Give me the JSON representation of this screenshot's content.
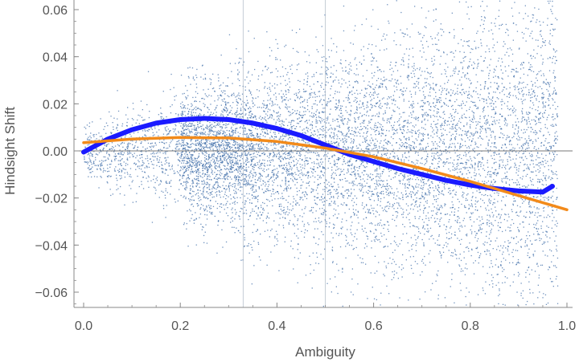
{
  "chart_data": {
    "type": "scatter",
    "title": "",
    "xlabel": "Ambiguity",
    "ylabel": "Hindsight Shift",
    "xlim": [
      0.0,
      1.0
    ],
    "ylim": [
      -0.066,
      0.066
    ],
    "x_ticks": [
      0.0,
      0.2,
      0.4,
      0.6,
      0.8,
      1.0
    ],
    "x_tick_labels": [
      "0.0",
      "0.2",
      "0.4",
      "0.6",
      "0.8",
      "1.0"
    ],
    "y_ticks": [
      -0.06,
      -0.04,
      -0.02,
      0.0,
      0.02,
      0.04,
      0.06
    ],
    "y_tick_labels": [
      "−0.06",
      "−0.04",
      "−0.02",
      "0.00",
      "0.02",
      "0.04",
      "0.06"
    ],
    "grid": false,
    "reference_lines": {
      "y": 0.0,
      "x": [
        0.33,
        0.5
      ]
    },
    "colors": {
      "points": "#3f6ea8",
      "smooth_curve": "#1a1aff",
      "fit_curve": "#f28a1a",
      "axis": "#888888",
      "text": "#555555"
    },
    "series": [
      {
        "type": "scatter-cloud",
        "description_points": "dense cloud of individual observations, concentrated near y = 0, spreading wider with increasing ambiguity"
      },
      {
        "type": "line",
        "x": [
          0.0,
          0.05,
          0.1,
          0.15,
          0.2,
          0.25,
          0.3,
          0.35,
          0.4,
          0.45,
          0.5,
          0.55,
          0.6,
          0.65,
          0.7,
          0.75,
          0.8,
          0.85,
          0.9,
          0.95,
          0.97
        ],
        "y": [
          -0.0005,
          0.005,
          0.009,
          0.0118,
          0.0133,
          0.0138,
          0.0133,
          0.0118,
          0.0095,
          0.0065,
          0.0025,
          -0.0015,
          -0.0045,
          -0.0075,
          -0.01,
          -0.0125,
          -0.0145,
          -0.016,
          -0.017,
          -0.0175,
          -0.015
        ]
      },
      {
        "type": "line",
        "x": [
          0.0,
          0.1,
          0.2,
          0.3,
          0.4,
          0.5,
          0.6,
          0.7,
          0.8,
          0.9,
          1.0
        ],
        "y": [
          0.0035,
          0.005,
          0.0057,
          0.0055,
          0.004,
          0.0012,
          -0.0025,
          -0.0075,
          -0.013,
          -0.019,
          -0.025
        ]
      }
    ]
  }
}
